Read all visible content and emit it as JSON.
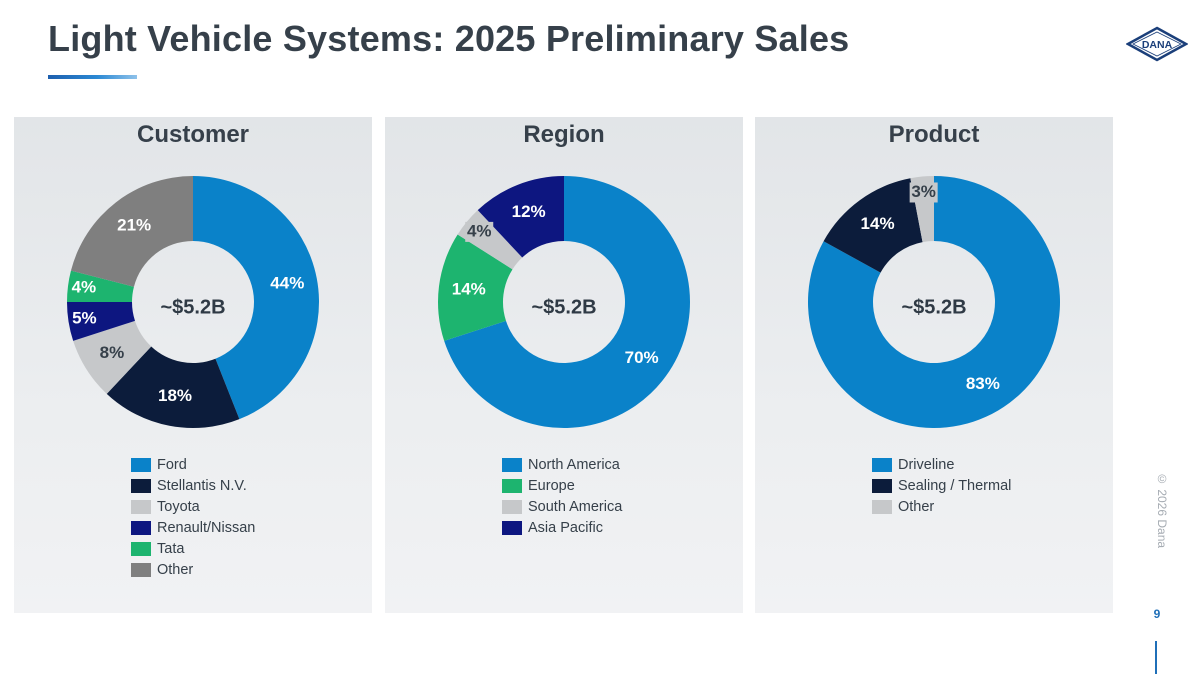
{
  "header": {
    "title": "Light Vehicle Systems: 2025 Preliminary Sales",
    "logo_text": "DANA"
  },
  "footer": {
    "copyright": "© 2026 Dana",
    "page_number": "9"
  },
  "colors": {
    "blue": "#0a82c9",
    "navy": "#0c1c3b",
    "gray": "#c6c8ca",
    "royal": "#0d1680",
    "green": "#1db46f",
    "darkgray": "#7f7f7f"
  },
  "chart_data": [
    {
      "type": "pie",
      "title": "Customer",
      "center_label": "~$5.2B",
      "labels": [
        "Ford",
        "Stellantis N.V.",
        "Toyota",
        "Renault/Nissan",
        "Tata",
        "Other"
      ],
      "values": [
        44,
        18,
        8,
        5,
        4,
        21
      ],
      "value_labels": [
        "44%",
        "18%",
        "8%",
        "5%",
        "4%",
        "21%"
      ],
      "colors": [
        "#0a82c9",
        "#0c1c3b",
        "#c6c8ca",
        "#0d1680",
        "#1db46f",
        "#7f7f7f"
      ]
    },
    {
      "type": "pie",
      "title": "Region",
      "center_label": "~$5.2B",
      "labels": [
        "North America",
        "Europe",
        "South America",
        "Asia Pacific"
      ],
      "values": [
        70,
        14,
        4,
        12
      ],
      "value_labels": [
        "70%",
        "14%",
        "4%",
        "12%"
      ],
      "colors": [
        "#0a82c9",
        "#1db46f",
        "#c6c8ca",
        "#0d1680"
      ]
    },
    {
      "type": "pie",
      "title": "Product",
      "center_label": "~$5.2B",
      "labels": [
        "Driveline",
        "Sealing / Thermal",
        "Other"
      ],
      "values": [
        83,
        14,
        3
      ],
      "value_labels": [
        "83%",
        "14%",
        "3%"
      ],
      "colors": [
        "#0a82c9",
        "#0c1c3b",
        "#c6c8ca"
      ]
    }
  ]
}
